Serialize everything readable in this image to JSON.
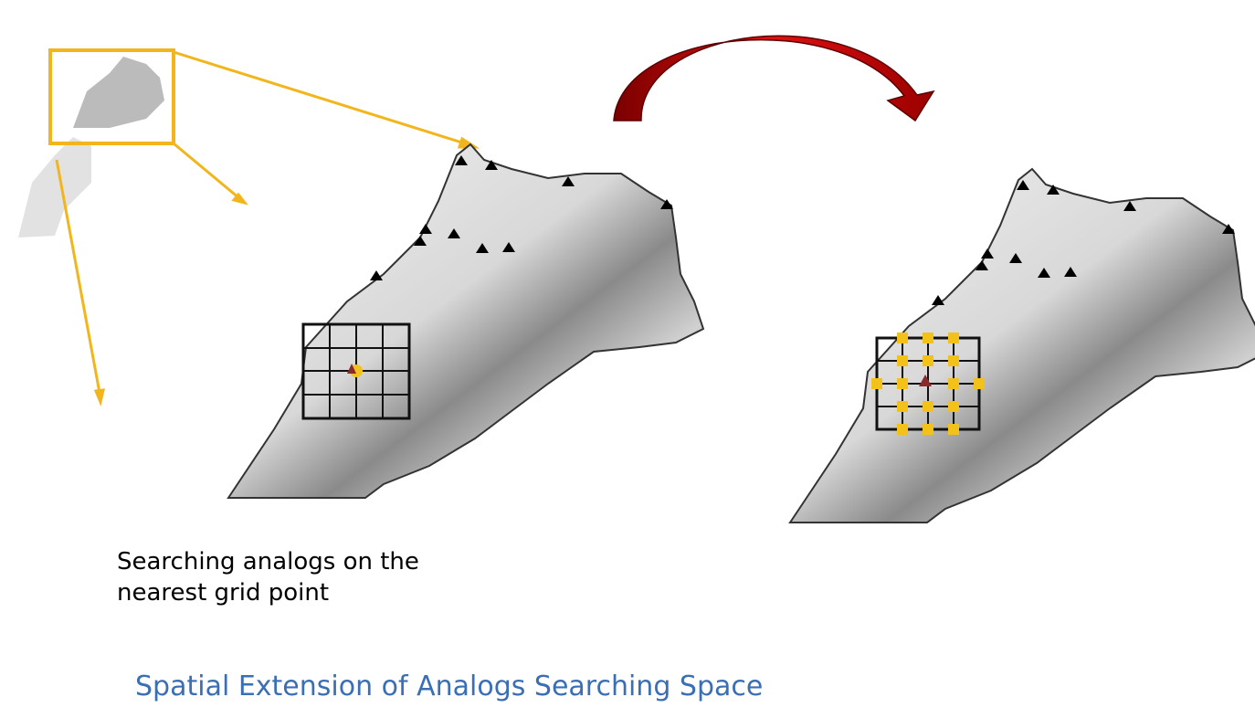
{
  "caption": {
    "lines": [
      "Searching analogs on the",
      "nearest grid point"
    ]
  },
  "footer": {
    "title": "Spatial Extension of Analogs Searching Space"
  }
}
